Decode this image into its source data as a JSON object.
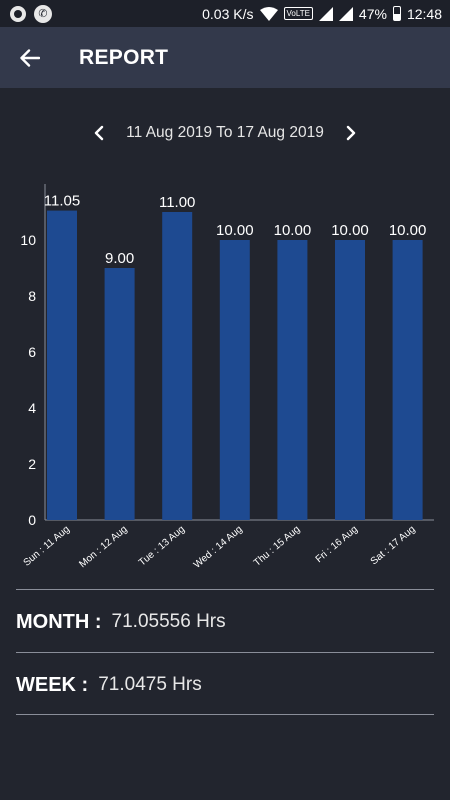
{
  "status_bar": {
    "speed": "0.03 K/s",
    "volte": "VoLTE",
    "battery": "47%",
    "time": "12:48"
  },
  "app_bar": {
    "title": "REPORT",
    "back_icon": "arrow-left-icon"
  },
  "week_nav": {
    "range": "11 Aug 2019 To 17 Aug 2019",
    "prev_icon": "chevron-left-icon",
    "next_icon": "chevron-right-icon"
  },
  "colors": {
    "bar": "#1e4a91",
    "background": "#22252e",
    "appbar": "#33394b",
    "axis": "#8a8e99"
  },
  "chart_data": {
    "type": "bar",
    "categories": [
      "Sun : 11 Aug",
      "Mon : 12 Aug",
      "Tue : 13 Aug",
      "Wed : 14 Aug",
      "Thu : 15 Aug",
      "Fri : 16 Aug",
      "Sat : 17 Aug"
    ],
    "values": [
      11.05,
      9.0,
      11.0,
      10.0,
      10.0,
      10.0,
      10.0
    ],
    "value_labels": [
      "11.05",
      "9.00",
      "11.00",
      "10.00",
      "10.00",
      "10.00",
      "10.00"
    ],
    "y_ticks": [
      "0",
      "2",
      "4",
      "6",
      "8",
      "10"
    ],
    "ylim": [
      0,
      12
    ],
    "grid": false
  },
  "summary": {
    "month_label": "MONTH :",
    "month_value": "71.05556 Hrs",
    "week_label": "WEEK :",
    "week_value": "71.0475 Hrs"
  }
}
